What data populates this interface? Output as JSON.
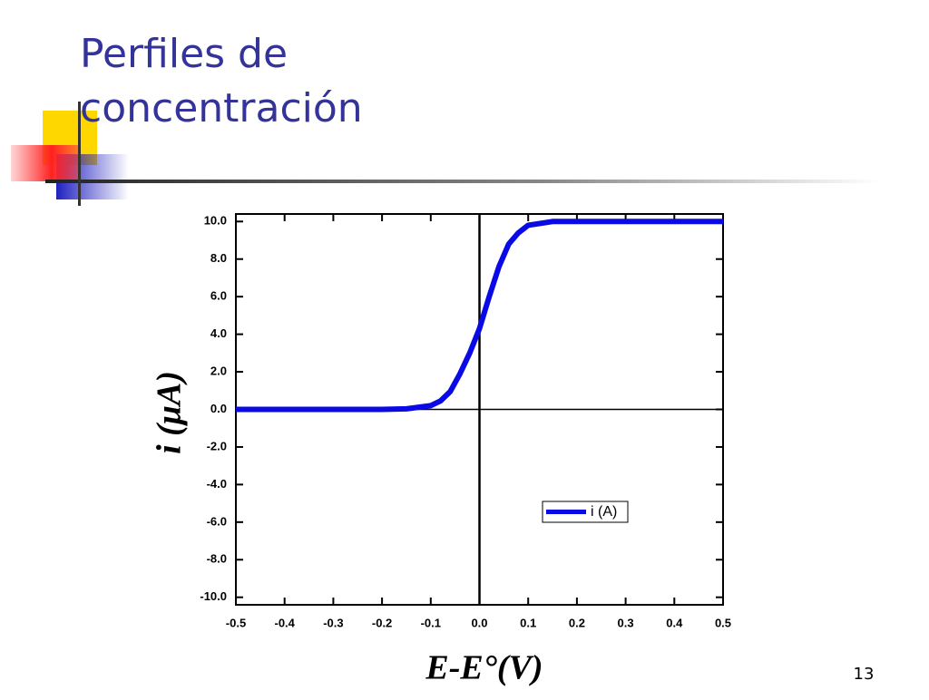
{
  "slide": {
    "title_lines": [
      "Perfiles de",
      "concentración"
    ],
    "number": "13"
  },
  "chart_data": {
    "type": "line",
    "x_label": "E-E°(V)",
    "y_label": "i (μA)",
    "x": [
      -0.5,
      -0.2,
      -0.15,
      -0.1,
      -0.08,
      -0.06,
      -0.04,
      -0.02,
      0,
      0.02,
      0.04,
      0.06,
      0.08,
      0.1,
      0.15,
      0.2,
      0.5
    ],
    "series": [
      {
        "name": "i (A)",
        "color": "#0a0ae6",
        "values": [
          0,
          0,
          0.03,
          0.2,
          0.45,
          0.95,
          1.9,
          3.0,
          4.3,
          6.0,
          7.6,
          8.8,
          9.4,
          9.8,
          10.0,
          10.0,
          10.0
        ]
      }
    ],
    "xlim": [
      -0.5,
      0.5
    ],
    "ylim": [
      -10.4,
      10.4
    ],
    "xticks": [
      -0.5,
      -0.4,
      -0.3,
      -0.2,
      -0.1,
      {
        "value": 0,
        "label": "0.0"
      },
      0.1,
      0.2,
      0.3,
      0.4,
      0.5
    ],
    "yticks": [
      {
        "value": 10,
        "label": "10.0"
      },
      {
        "value": 8,
        "label": "8.0"
      },
      {
        "value": 6,
        "label": "6.0"
      },
      {
        "value": 4,
        "label": "4.0"
      },
      {
        "value": 2,
        "label": "2.0"
      },
      {
        "value": 0,
        "label": "0.0"
      },
      {
        "value": -2,
        "label": "-2.0"
      },
      {
        "value": -4,
        "label": "-4.0"
      },
      {
        "value": -6,
        "label": "-6.0"
      },
      {
        "value": -8,
        "label": "-8.0"
      },
      {
        "value": -10,
        "label": "-10.0"
      }
    ],
    "legend": "lower-right"
  }
}
